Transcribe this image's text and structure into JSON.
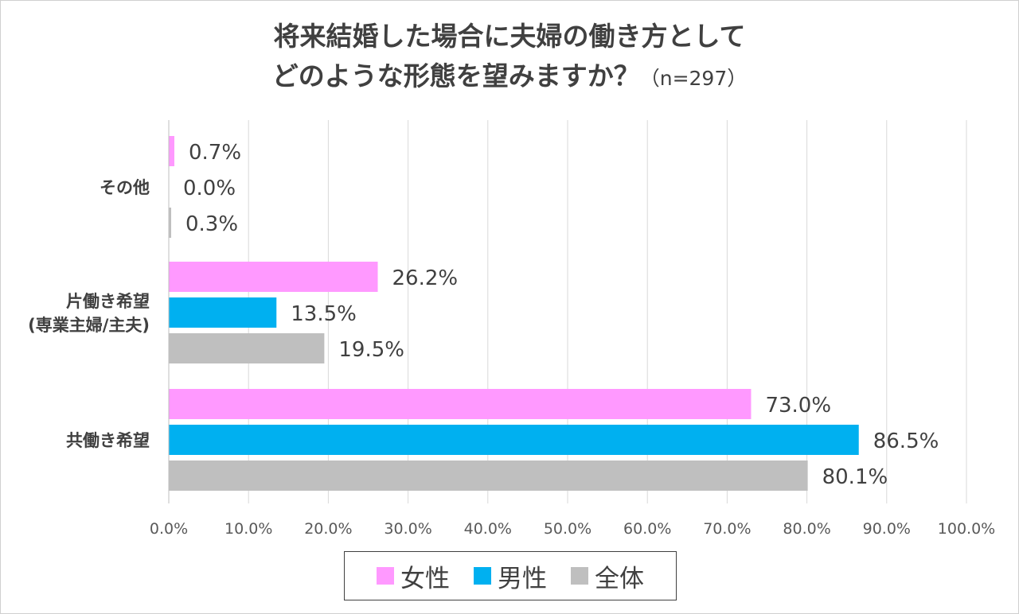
{
  "title": {
    "line1": "将来結婚した場合に夫婦の働き方として",
    "line2": "どのような形態を望みますか？",
    "sample": "（n=297）"
  },
  "colors": {
    "female": "#FF99FF",
    "male": "#00B0F0",
    "total": "#BFBFBF",
    "grid": "#D9D9D9",
    "text": "#404040"
  },
  "chart_data": {
    "type": "bar",
    "orientation": "horizontal",
    "categories": [
      [
        "その他"
      ],
      [
        "片働き希望",
        "(専業主婦/主夫)"
      ],
      [
        "共働き希望"
      ]
    ],
    "series": [
      {
        "name": "女性",
        "values": [
          0.7,
          26.2,
          73.0
        ],
        "labels": [
          "0.7%",
          "26.2%",
          "73.0%"
        ],
        "color": "#FF99FF"
      },
      {
        "name": "男性",
        "values": [
          0.0,
          13.5,
          86.5
        ],
        "labels": [
          "0.0%",
          "13.5%",
          "86.5%"
        ],
        "color": "#00B0F0"
      },
      {
        "name": "全体",
        "values": [
          0.3,
          19.5,
          80.1
        ],
        "labels": [
          "0.3%",
          "19.5%",
          "80.1%"
        ],
        "color": "#BFBFBF"
      }
    ],
    "xlim": [
      0,
      100
    ],
    "xticks": [
      "0.0%",
      "10.0%",
      "20.0%",
      "30.0%",
      "40.0%",
      "50.0%",
      "60.0%",
      "70.0%",
      "80.0%",
      "90.0%",
      "100.0%"
    ],
    "grid": true,
    "legend": "bottom"
  }
}
